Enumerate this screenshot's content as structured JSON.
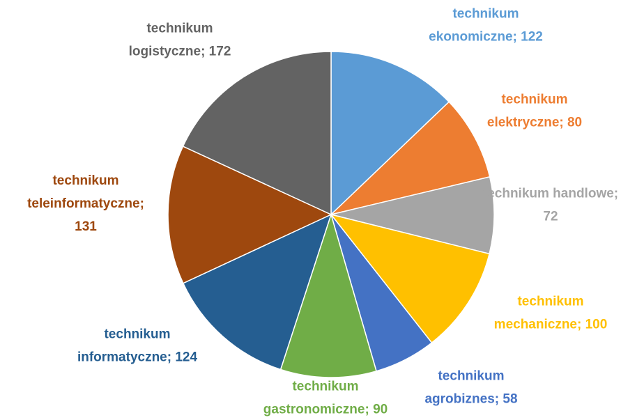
{
  "chart_data": {
    "type": "pie",
    "labels": [
      "technikum ekonomiczne; 122",
      "technikum elektryczne; 80",
      "technikum handlowe; 72",
      "technikum mechaniczne; 100",
      "technikum agrobiznes; 58",
      "technikum gastronomiczne; 90",
      "technikum informatyczne; 124",
      "technikum teleinformatyczne; 131",
      "technikum logistyczne; 172"
    ],
    "values": [
      122,
      80,
      72,
      100,
      58,
      90,
      124,
      131,
      172
    ],
    "colors": [
      "#5b9bd5",
      "#ed7d31",
      "#a5a5a5",
      "#ffc000",
      "#4472c4",
      "#70ad47",
      "#255e91",
      "#9e480e",
      "#636363"
    ]
  }
}
